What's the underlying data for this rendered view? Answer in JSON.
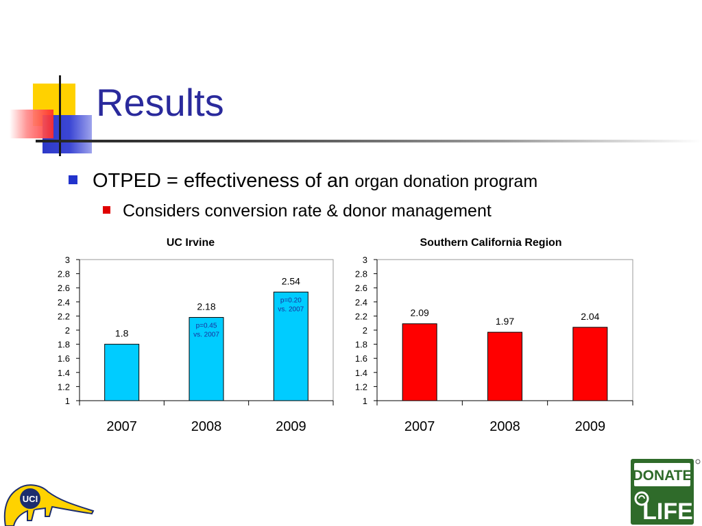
{
  "slide": {
    "title": "Results",
    "bullet1_main": "OTPED = effectiveness of an",
    "bullet1_rest": "organ donation program",
    "bullet2": "Considers conversion rate & donor management"
  },
  "colors": {
    "title": "#2a2a9c",
    "bar_left": "#00ccff",
    "bar_right": "#ff0000"
  },
  "chart_data": [
    {
      "type": "bar",
      "title": "UC Irvine",
      "categories": [
        "2007",
        "2008",
        "2009"
      ],
      "values": [
        1.8,
        2.18,
        2.54
      ],
      "value_labels": [
        "1.8",
        "2.18",
        "2.54"
      ],
      "annotations": [
        null,
        [
          "p=0.45",
          "vs. 2007"
        ],
        [
          "p=0.20",
          "vs. 2007"
        ]
      ],
      "ylim": [
        1,
        3
      ],
      "yticks": [
        "1",
        "1.2",
        "1.4",
        "1.6",
        "1.8",
        "2",
        "2.2",
        "2.4",
        "2.6",
        "2.8",
        "3"
      ],
      "grid": false
    },
    {
      "type": "bar",
      "title": "Southern California Region",
      "categories": [
        "2007",
        "2008",
        "2009"
      ],
      "values": [
        2.09,
        1.97,
        2.04
      ],
      "value_labels": [
        "2.09",
        "1.97",
        "2.04"
      ],
      "annotations": [
        null,
        null,
        null
      ],
      "ylim": [
        1,
        3
      ],
      "yticks": [
        "1",
        "1.2",
        "1.4",
        "1.6",
        "1.8",
        "2",
        "2.2",
        "2.4",
        "2.6",
        "2.8",
        "3"
      ],
      "grid": false
    }
  ],
  "logos": {
    "uci_text": "UCI",
    "donate_text": "DONATE",
    "life_text": "LIFE"
  }
}
